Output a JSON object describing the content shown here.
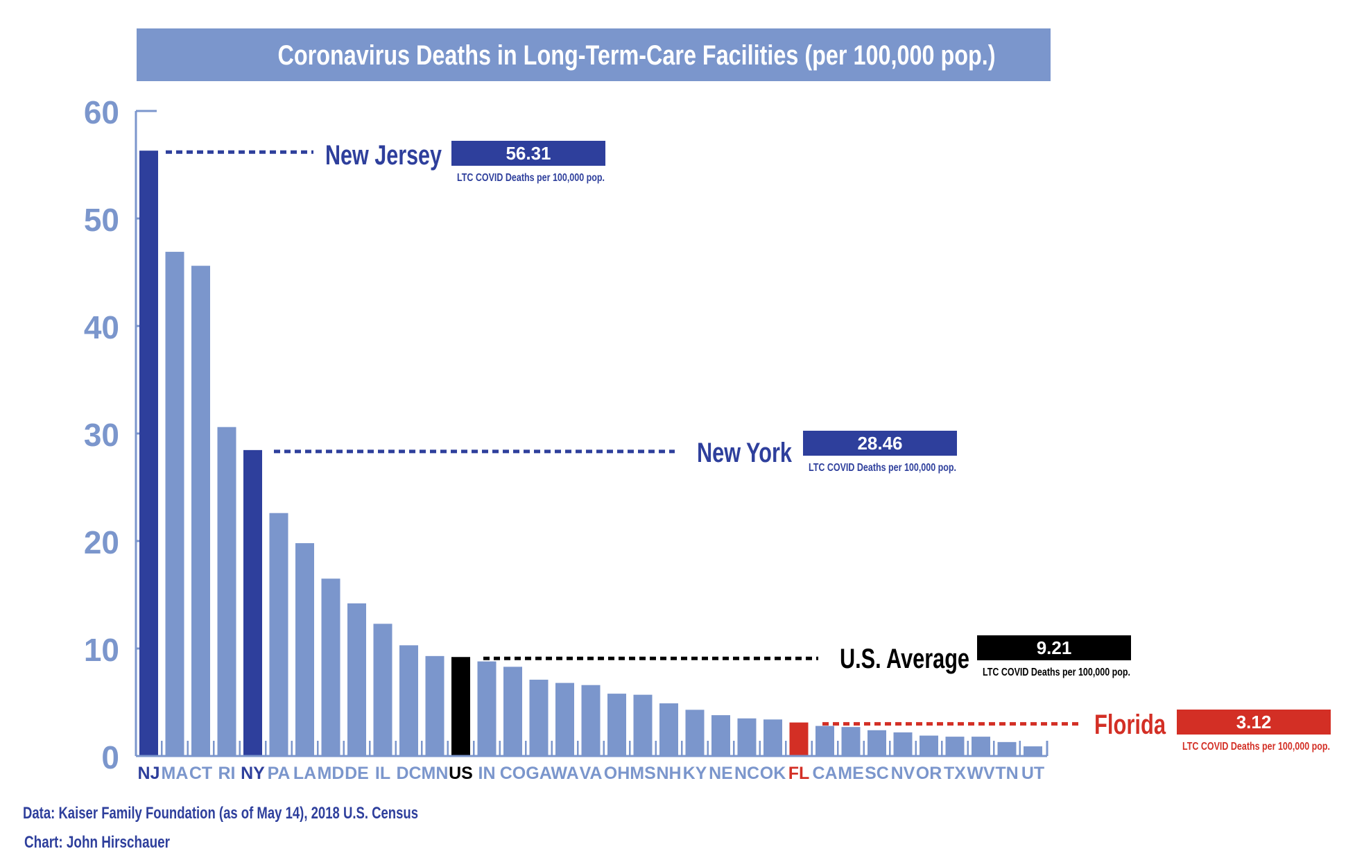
{
  "chart_data": {
    "type": "bar",
    "title": "Coronavirus Deaths in Long-Term-Care Facilities (per 100,000 pop.)",
    "xlabel": "",
    "ylabel": "",
    "ylim": [
      0,
      60
    ],
    "yticks": [
      0,
      10,
      20,
      30,
      40,
      50,
      60
    ],
    "grid": false,
    "categories": [
      "NJ",
      "MA",
      "CT",
      "RI",
      "NY",
      "PA",
      "LA",
      "MD",
      "DE",
      "IL",
      "DC",
      "MN",
      "US",
      "IN",
      "CO",
      "GA",
      "WA",
      "VA",
      "OH",
      "MS",
      "NH",
      "KY",
      "NE",
      "NC",
      "OK",
      "FL",
      "CA",
      "ME",
      "SC",
      "NV",
      "OR",
      "TX",
      "WV",
      "TN",
      "UT"
    ],
    "values": [
      56.31,
      46.9,
      45.6,
      30.6,
      28.46,
      22.6,
      19.8,
      16.5,
      14.2,
      12.3,
      10.3,
      9.3,
      9.21,
      8.8,
      8.3,
      7.1,
      6.8,
      6.6,
      5.8,
      5.7,
      4.9,
      4.3,
      3.8,
      3.5,
      3.4,
      3.12,
      2.8,
      2.7,
      2.4,
      2.2,
      1.9,
      1.8,
      1.8,
      1.3,
      0.9
    ],
    "highlights": {
      "NJ": "dark",
      "NY": "dark",
      "US": "black",
      "FL": "red"
    },
    "annotations": [
      {
        "category": "NJ",
        "name": "New Jersey",
        "value_label": "56.31",
        "sublabel": "LTC COVID Deaths per 100,000 pop.",
        "color": "dark"
      },
      {
        "category": "NY",
        "name": "New York",
        "value_label": "28.46",
        "sublabel": "LTC COVID Deaths per 100,000 pop.",
        "color": "dark"
      },
      {
        "category": "US",
        "name": "U.S. Average",
        "value_label": "9.21",
        "sublabel": "LTC COVID Deaths per 100,000 pop.",
        "color": "black"
      },
      {
        "category": "FL",
        "name": "Florida",
        "value_label": "3.12",
        "sublabel": "LTC COVID Deaths per 100,000 pop.",
        "color": "red"
      }
    ]
  },
  "colors": {
    "default_bar": "#7b96cc",
    "dark": "#2e3f9c",
    "black": "#000000",
    "red": "#d32f25",
    "title_bg": "#7b96cc",
    "axis": "#7b96cc"
  },
  "footer": {
    "source": "Data: Kaiser Family Foundation (as of May 14), 2018 U.S. Census",
    "credit": "Chart: John Hirschauer"
  }
}
